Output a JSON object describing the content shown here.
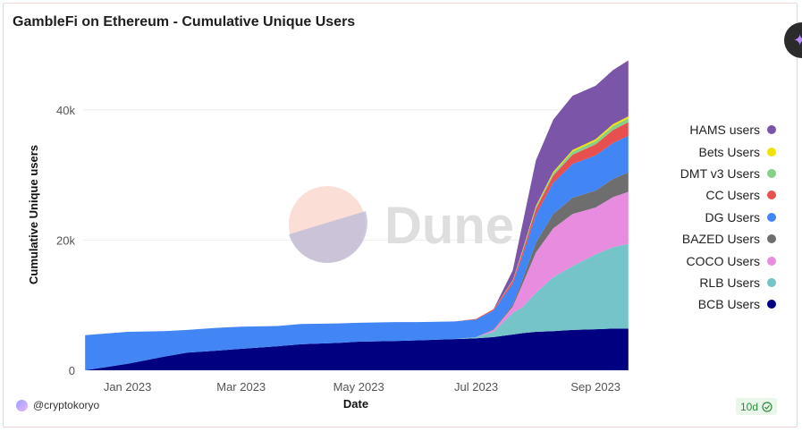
{
  "header": {
    "title": "GambleFi on Ethereum - Cumulative Unique Users"
  },
  "watermark": {
    "text": "Dune"
  },
  "footer": {
    "author": "@cryptokoryo",
    "refresh_badge": "10d"
  },
  "icons": {
    "ai": "sparkle-icon",
    "avatar": "avatar-icon",
    "refresh_ok": "check-circle-icon"
  },
  "chart_data": {
    "type": "area",
    "stacked": true,
    "title": "GambleFi on Ethereum - Cumulative Unique Users",
    "xlabel": "Date",
    "ylabel": "Cumulative Unique users",
    "ylim": [
      0,
      50000
    ],
    "yticks": [
      0,
      20000,
      40000
    ],
    "ytick_labels": [
      "0",
      "20k",
      "40k"
    ],
    "xticks": [
      "2023-01-01",
      "2023-03-01",
      "2023-05-01",
      "2023-07-01",
      "2023-09-01"
    ],
    "xtick_labels": [
      "Jan 2023",
      "Mar 2023",
      "May 2023",
      "Jul 2023",
      "Sep 2023"
    ],
    "xlim": [
      "2022-12-09",
      "2023-09-19"
    ],
    "legend_position": "right",
    "x": [
      "2022-12-10",
      "2023-01-01",
      "2023-01-20",
      "2023-02-01",
      "2023-02-15",
      "2023-03-01",
      "2023-03-20",
      "2023-04-01",
      "2023-04-20",
      "2023-05-01",
      "2023-05-20",
      "2023-06-01",
      "2023-06-20",
      "2023-07-01",
      "2023-07-10",
      "2023-07-20",
      "2023-07-25",
      "2023-08-01",
      "2023-08-10",
      "2023-08-20",
      "2023-09-01",
      "2023-09-10",
      "2023-09-18"
    ],
    "series": [
      {
        "name": "BCB Users",
        "color": "#000080",
        "values": [
          0,
          1000,
          2100,
          2700,
          3000,
          3300,
          3700,
          4000,
          4200,
          4400,
          4500,
          4600,
          4800,
          4900,
          5100,
          5500,
          5700,
          5900,
          6000,
          6200,
          6300,
          6400,
          6400
        ]
      },
      {
        "name": "RLB Users",
        "color": "#74c4c9",
        "values": [
          0,
          0,
          0,
          0,
          0,
          0,
          0,
          0,
          0,
          0,
          0,
          0,
          0,
          200,
          800,
          3300,
          4000,
          6000,
          8300,
          9800,
          11500,
          12500,
          13000
        ]
      },
      {
        "name": "COCO Users",
        "color": "#e88ce0",
        "values": [
          0,
          0,
          0,
          0,
          0,
          0,
          0,
          0,
          0,
          0,
          0,
          0,
          0,
          0,
          300,
          1000,
          3500,
          6200,
          7500,
          8000,
          7200,
          7700,
          8000
        ]
      },
      {
        "name": "BAZED Users",
        "color": "#6e6e6e",
        "values": [
          0,
          0,
          0,
          0,
          0,
          0,
          0,
          0,
          0,
          0,
          0,
          0,
          0,
          0,
          100,
          300,
          700,
          1500,
          2200,
          2500,
          2600,
          2800,
          3000
        ]
      },
      {
        "name": "DG Users",
        "color": "#4285f4",
        "values": [
          5400,
          4900,
          3900,
          3500,
          3500,
          3400,
          3100,
          3100,
          3000,
          2900,
          2900,
          2800,
          2700,
          2700,
          2900,
          3200,
          3600,
          4300,
          4800,
          5200,
          5400,
          5500,
          5600
        ]
      },
      {
        "name": "CC Users",
        "color": "#e85050",
        "values": [
          0,
          0,
          0,
          0,
          0,
          0,
          0,
          0,
          0,
          0,
          0,
          0,
          0,
          100,
          200,
          400,
          600,
          900,
          1100,
          1400,
          1700,
          2000,
          2100
        ]
      },
      {
        "name": "DMT v3 Users",
        "color": "#88d08a",
        "values": [
          0,
          0,
          0,
          0,
          0,
          0,
          0,
          0,
          0,
          0,
          0,
          0,
          0,
          0,
          0,
          100,
          200,
          300,
          400,
          500,
          500,
          600,
          600
        ]
      },
      {
        "name": "Bets Users",
        "color": "#f2e200",
        "values": [
          0,
          0,
          0,
          0,
          0,
          0,
          0,
          0,
          0,
          0,
          0,
          0,
          0,
          0,
          0,
          50,
          100,
          150,
          200,
          250,
          300,
          300,
          300
        ]
      },
      {
        "name": "HAMS users",
        "color": "#7b55a8",
        "values": [
          0,
          0,
          0,
          0,
          0,
          0,
          0,
          0,
          0,
          0,
          0,
          0,
          0,
          0,
          0,
          1500,
          4000,
          7000,
          8000,
          8300,
          8200,
          8300,
          8600
        ]
      }
    ]
  }
}
